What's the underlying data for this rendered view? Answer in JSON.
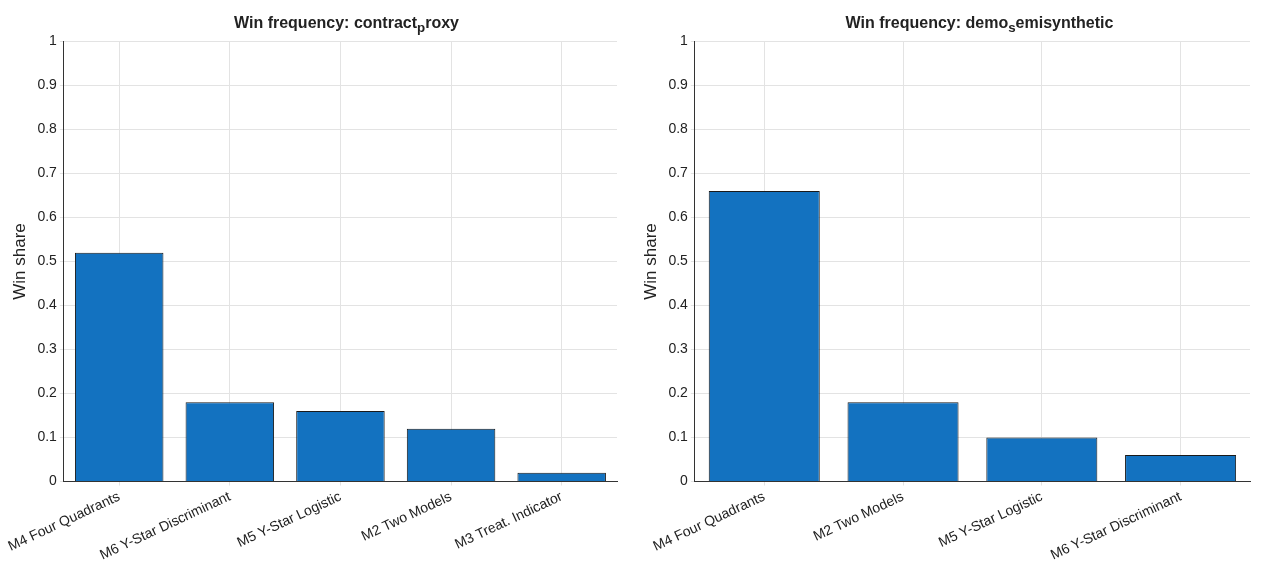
{
  "chart_data": [
    {
      "type": "bar",
      "title": "Win frequency: contract$_{p}$roxy",
      "ylabel": "Win share",
      "categories": [
        "M4 Four Quadrants",
        "M6 Y-Star Discriminant",
        "M5 Y-Star Logistic",
        "M2 Two Models",
        "M3 Treat. Indicator"
      ],
      "values": [
        0.52,
        0.18,
        0.16,
        0.12,
        0.02
      ],
      "color": "#1372c0",
      "ylim": [
        0,
        1
      ],
      "yticks": [
        0,
        0.1,
        0.2,
        0.3,
        0.4,
        0.5,
        0.6,
        0.7,
        0.8,
        0.9,
        1
      ],
      "grid": true
    },
    {
      "type": "bar",
      "title": "Win frequency: demo$_{s}$emisynthetic",
      "ylabel": "Win share",
      "categories": [
        "M4 Four Quadrants",
        "M2 Two Models",
        "M5 Y-Star Logistic",
        "M6 Y-Star Discriminant"
      ],
      "values": [
        0.66,
        0.18,
        0.1,
        0.06
      ],
      "color": "#1372c0",
      "ylim": [
        0,
        1
      ],
      "yticks": [
        0,
        0.1,
        0.2,
        0.3,
        0.4,
        0.5,
        0.6,
        0.7,
        0.8,
        0.9,
        1
      ],
      "grid": true
    }
  ]
}
